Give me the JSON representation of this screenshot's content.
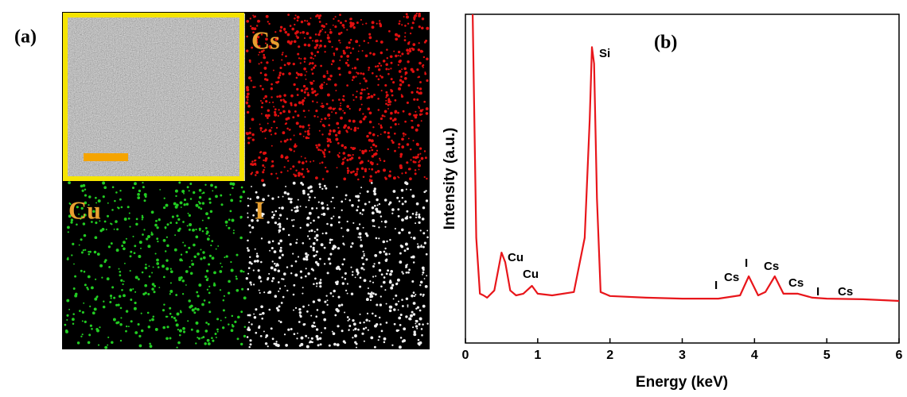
{
  "panel_a": {
    "label": "(a)",
    "maps": [
      {
        "label": "Cs"
      },
      {
        "label": "Cu"
      },
      {
        "label": "I"
      }
    ]
  },
  "chart_data": {
    "type": "line",
    "panel_label": "(b)",
    "x_label": "Energy (keV)",
    "y_label": "Intensity (a.u.)",
    "x": [
      0.1,
      0.15,
      0.2,
      0.25,
      0.3,
      0.4,
      0.5,
      0.55,
      0.62,
      0.7,
      0.8,
      0.92,
      1.0,
      1.2,
      1.5,
      1.65,
      1.72,
      1.75,
      1.78,
      1.82,
      1.87,
      2.0,
      2.5,
      3.0,
      3.5,
      3.8,
      3.92,
      4.05,
      4.15,
      4.28,
      4.4,
      4.6,
      4.8,
      5.0,
      5.5,
      6.0
    ],
    "values": [
      100,
      32,
      15,
      14.5,
      13.8,
      16,
      27.5,
      24.6,
      16,
      14.5,
      15,
      17.4,
      15,
      14.5,
      15.5,
      32,
      68,
      90,
      85,
      44,
      15.5,
      14.3,
      13.8,
      13.5,
      13.5,
      14.5,
      20.3,
      14.5,
      15.5,
      20.3,
      15,
      15,
      13.8,
      13.5,
      13.3,
      12.8
    ],
    "color": "#e8161b",
    "xlim": [
      0,
      6
    ],
    "ylim": [
      0,
      100
    ],
    "xticks": [
      0,
      1,
      2,
      3,
      4,
      5,
      6
    ],
    "annotations": [
      "Cu",
      "Cu",
      "Si",
      "I",
      "Cs",
      "I",
      "Cs",
      "Cs",
      "I",
      "Cs"
    ]
  }
}
